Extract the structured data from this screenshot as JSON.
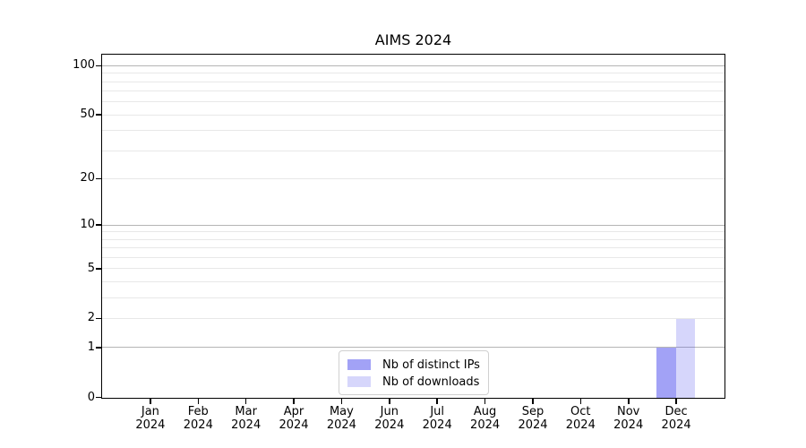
{
  "chart_data": {
    "type": "bar",
    "title": "AIMS 2024",
    "categories": [
      "Jan",
      "Feb",
      "Mar",
      "Apr",
      "May",
      "Jun",
      "Jul",
      "Aug",
      "Sep",
      "Oct",
      "Nov",
      "Dec"
    ],
    "category_year": "2024",
    "series": [
      {
        "name": "Nb of distinct IPs",
        "color": "rgba(85,85,238,0.55)",
        "values": [
          0,
          0,
          0,
          0,
          0,
          0,
          0,
          0,
          0,
          0,
          0,
          1
        ]
      },
      {
        "name": "Nb of downloads",
        "color": "rgba(85,85,238,0.24)",
        "values": [
          0,
          0,
          0,
          0,
          0,
          0,
          0,
          0,
          0,
          0,
          0,
          2
        ]
      }
    ],
    "xlabel": "",
    "ylabel": "",
    "y_axis": {
      "scale": "log1p",
      "tick_values": [
        0,
        1,
        2,
        5,
        10,
        20,
        50,
        100
      ],
      "decade_gridlines": [
        1,
        10,
        100
      ],
      "minor_gridlines": [
        2,
        3,
        4,
        5,
        6,
        7,
        8,
        9,
        20,
        30,
        40,
        50,
        60,
        70,
        80,
        90
      ],
      "ylim": [
        0,
        116
      ]
    },
    "grid": true,
    "legend_position": "lower center"
  },
  "colors": {
    "background": "#ffffff",
    "axis": "#000000",
    "decade_gridline": "#b5b5b5",
    "minor_gridline": "#e8e8e8",
    "legend_border": "#d0d0d0",
    "text": "#000000"
  }
}
